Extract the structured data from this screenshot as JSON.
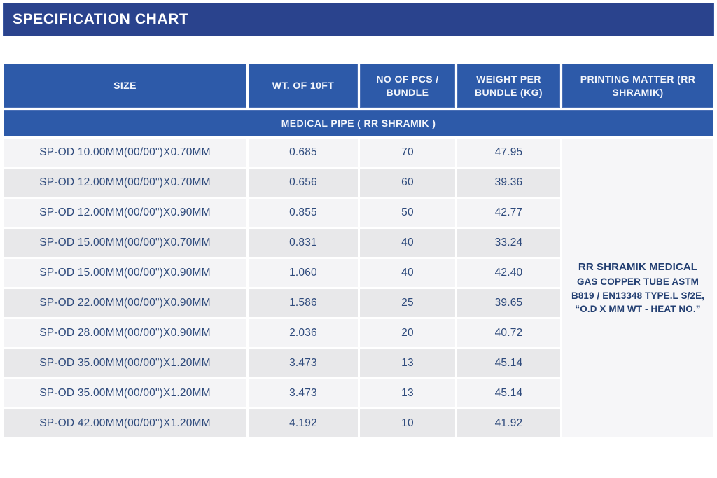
{
  "banner": {
    "title": "SPECIFICATION CHART"
  },
  "colors": {
    "banner_blue": "#2a438d",
    "header_blue": "#2d5aa9",
    "row_light": "#f4f4f6",
    "row_dark": "#e8e8ea",
    "data_text": "#2e4a7c",
    "header_text": "#f2f5fb"
  },
  "table": {
    "columns": [
      {
        "key": "size",
        "label": "SIZE"
      },
      {
        "key": "wt_of_10ft",
        "label": "WT. OF 10FT"
      },
      {
        "key": "pcs_per_bundle",
        "label": "NO OF PCS / BUNDLE"
      },
      {
        "key": "weight_per_bundle_kg",
        "label": "WEIGHT PER BUNDLE (KG)"
      },
      {
        "key": "printing_matter",
        "label": "PRINTING MATTER (RR SHRAMIK)"
      }
    ],
    "section_label": "MEDICAL PIPE ( RR SHRAMIK )",
    "rows": [
      {
        "size": "SP-OD 10.00MM(00/00\")X0.70MM",
        "wt_of_10ft": "0.685",
        "pcs_per_bundle": "70",
        "weight_per_bundle_kg": "47.95"
      },
      {
        "size": "SP-OD 12.00MM(00/00\")X0.70MM",
        "wt_of_10ft": "0.656",
        "pcs_per_bundle": "60",
        "weight_per_bundle_kg": "39.36"
      },
      {
        "size": "SP-OD 12.00MM(00/00\")X0.90MM",
        "wt_of_10ft": "0.855",
        "pcs_per_bundle": "50",
        "weight_per_bundle_kg": "42.77"
      },
      {
        "size": "SP-OD 15.00MM(00/00\")X0.70MM",
        "wt_of_10ft": "0.831",
        "pcs_per_bundle": "40",
        "weight_per_bundle_kg": "33.24"
      },
      {
        "size": "SP-OD 15.00MM(00/00\")X0.90MM",
        "wt_of_10ft": "1.060",
        "pcs_per_bundle": "40",
        "weight_per_bundle_kg": "42.40"
      },
      {
        "size": "SP-OD 22.00MM(00/00\")X0.90MM",
        "wt_of_10ft": "1.586",
        "pcs_per_bundle": "25",
        "weight_per_bundle_kg": "39.65"
      },
      {
        "size": "SP-OD 28.00MM(00/00\")X0.90MM",
        "wt_of_10ft": "2.036",
        "pcs_per_bundle": "20",
        "weight_per_bundle_kg": "40.72"
      },
      {
        "size": "SP-OD 35.00MM(00/00\")X1.20MM",
        "wt_of_10ft": "3.473",
        "pcs_per_bundle": "13",
        "weight_per_bundle_kg": "45.14"
      },
      {
        "size": "SP-OD 35.00MM(00/00\")X1.20MM",
        "wt_of_10ft": "3.473",
        "pcs_per_bundle": "13",
        "weight_per_bundle_kg": "45.14"
      },
      {
        "size": "SP-OD 42.00MM(00/00\")X1.20MM",
        "wt_of_10ft": "4.192",
        "pcs_per_bundle": "10",
        "weight_per_bundle_kg": "41.92"
      }
    ],
    "printing_matter": {
      "lines": [
        "RR SHRAMIK MEDICAL",
        "GAS COPPER TUBE ASTM",
        "B819 / EN13348 TYPE.L S/2E,",
        "“O.D X MM WT - HEAT NO.”"
      ]
    }
  }
}
